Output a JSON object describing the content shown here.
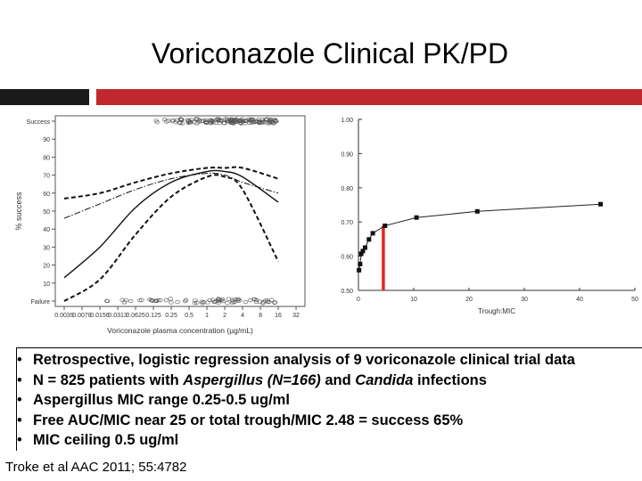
{
  "slide": {
    "title": "Voriconazole Clinical PK/PD",
    "citation": "Troke et al AAC 2011; 55:4782",
    "bullets": [
      {
        "parts": [
          {
            "text": "Retrospective, logistic regression analysis of 9 voriconazole clinical trial data",
            "italic": false
          }
        ]
      },
      {
        "parts": [
          {
            "text": "N = 825 patients with ",
            "italic": false
          },
          {
            "text": "Aspergillus (N=166)",
            "italic": true
          },
          {
            "text": " and ",
            "italic": false
          },
          {
            "text": "Candida",
            "italic": true
          },
          {
            "text": " infections",
            "italic": false
          }
        ]
      },
      {
        "parts": [
          {
            "text": "Aspergillus MIC range 0.25-0.5 ug/ml",
            "italic": false
          }
        ]
      },
      {
        "parts": [
          {
            "text": "Free AUC/MIC near 25 or total trough/MIC 2.48 = success 65%",
            "italic": false
          }
        ]
      },
      {
        "parts": [
          {
            "text": "MIC ceiling 0.5 ug/ml",
            "italic": false
          }
        ]
      }
    ],
    "colors": {
      "header_bar_dark": "#1a1a1a",
      "header_bar_red": "#c0282d",
      "highlight_line": "#e8231e"
    }
  },
  "chart_data": [
    {
      "type": "line",
      "title": "",
      "xlabel": "Voriconazole plasma concentration (µg/mL)",
      "ylabel": "% success",
      "x_tick_labels": [
        "0.0039",
        "0.0078",
        "0.0156",
        "0.0313",
        "0.0625",
        "0.125",
        "0.25",
        "0.5",
        "1",
        "2",
        "4",
        "8",
        "16",
        "32"
      ],
      "y_tick_labels": [
        "Failure",
        "10",
        "20",
        "30",
        "40",
        "50",
        "60",
        "70",
        "80",
        "90",
        "Success"
      ],
      "ylim": [
        0,
        100
      ],
      "x_scale": "log2",
      "grid": false,
      "series": [
        {
          "style": "solid",
          "x": [
            0.0039,
            0.0156,
            0.0625,
            0.25,
            1,
            2,
            4,
            16
          ],
          "y": [
            13,
            30,
            52,
            66,
            72,
            72,
            69,
            55
          ]
        },
        {
          "style": "dashed-upper",
          "x": [
            0.0039,
            0.0156,
            0.0625,
            0.25,
            1,
            2,
            4,
            16
          ],
          "y": [
            57,
            60,
            66,
            71,
            74,
            74,
            74,
            68
          ]
        },
        {
          "style": "dashed-lower",
          "x": [
            0.0039,
            0.0156,
            0.0625,
            0.25,
            1,
            2,
            4,
            16
          ],
          "y": [
            0,
            12,
            37,
            58,
            69,
            69,
            62,
            22
          ]
        },
        {
          "style": "dash-dot",
          "x": [
            0.0039,
            0.0156,
            0.0625,
            0.25,
            1,
            2,
            4,
            16
          ],
          "y": [
            46,
            54,
            62,
            68,
            71,
            70,
            66,
            60
          ]
        }
      ]
    },
    {
      "type": "line",
      "title": "",
      "xlabel": "Trough:MIC",
      "ylabel": "",
      "xlim": [
        0,
        50
      ],
      "ylim": [
        0.5,
        1.0
      ],
      "x_tick_labels": [
        "0",
        "10",
        "20",
        "30",
        "40",
        "50"
      ],
      "y_tick_labels": [
        "0.50",
        "0.60",
        "0.70",
        "0.80",
        "0.90",
        "1.00"
      ],
      "grid": false,
      "series": [
        {
          "x": [
            0.1,
            0.3,
            0.5,
            0.8,
            1.2,
            1.9,
            2.6,
            4.8,
            10.5,
            21.5,
            43.8
          ],
          "y": [
            0.559,
            0.577,
            0.607,
            0.615,
            0.625,
            0.649,
            0.667,
            0.689,
            0.713,
            0.731,
            0.752
          ]
        }
      ],
      "highlight": {
        "x": 4.5,
        "y_from": 0.5,
        "y_to": 0.689
      }
    }
  ]
}
